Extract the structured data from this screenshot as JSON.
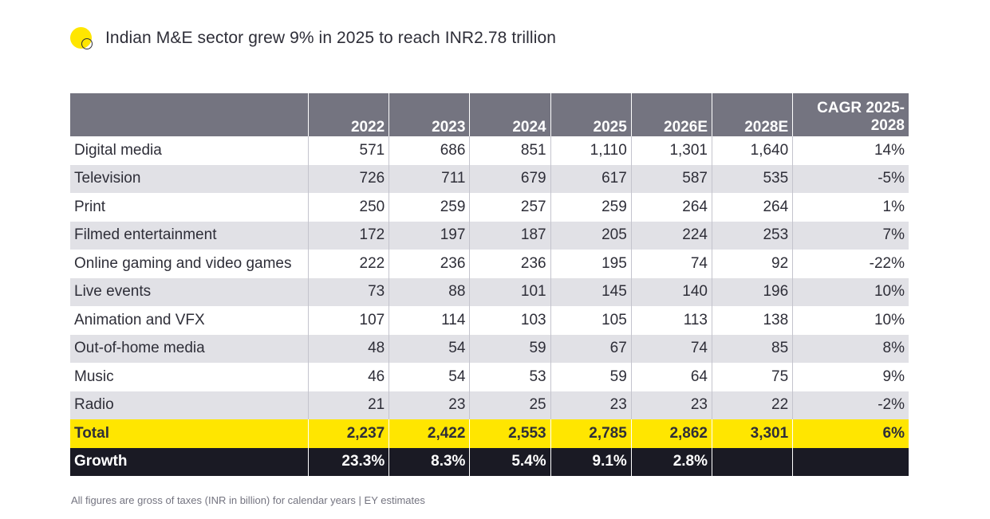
{
  "header": {
    "title": "Indian M&E sector grew 9% in 2025 to reach INR2.78 trillion"
  },
  "colors": {
    "accent_yellow": "#ffe600",
    "header_gray": "#747480",
    "dark": "#1a1a24",
    "stripe": "#e1e1e6"
  },
  "table": {
    "columns": [
      "2022",
      "2023",
      "2024",
      "2025",
      "2026E",
      "2028E",
      "CAGR 2025-\n2028"
    ],
    "rows": [
      {
        "label": "Digital media",
        "values": [
          "571",
          "686",
          "851",
          "1,110",
          "1,301",
          "1,640",
          "14%"
        ]
      },
      {
        "label": "Television",
        "values": [
          "726",
          "711",
          "679",
          "617",
          "587",
          "535",
          "-5%"
        ]
      },
      {
        "label": "Print",
        "values": [
          "250",
          "259",
          "257",
          "259",
          "264",
          "264",
          "1%"
        ]
      },
      {
        "label": "Filmed entertainment",
        "values": [
          "172",
          "197",
          "187",
          "205",
          "224",
          "253",
          "7%"
        ]
      },
      {
        "label": "Online gaming and video games",
        "values": [
          "222",
          "236",
          "236",
          "195",
          "74",
          "92",
          "-22%"
        ]
      },
      {
        "label": "Live events",
        "values": [
          "73",
          "88",
          "101",
          "145",
          "140",
          "196",
          "10%"
        ]
      },
      {
        "label": "Animation and VFX",
        "values": [
          "107",
          "114",
          "103",
          "105",
          "113",
          "138",
          "10%"
        ]
      },
      {
        "label": "Out-of-home media",
        "values": [
          "48",
          "54",
          "59",
          "67",
          "74",
          "85",
          "8%"
        ]
      },
      {
        "label": "Music",
        "values": [
          "46",
          "54",
          "53",
          "59",
          "64",
          "75",
          "9%"
        ]
      },
      {
        "label": "Radio",
        "values": [
          "21",
          "23",
          "25",
          "23",
          "23",
          "22",
          "-2%"
        ]
      }
    ],
    "total": {
      "label": "Total",
      "values": [
        "2,237",
        "2,422",
        "2,553",
        "2,785",
        "2,862",
        "3,301",
        "6%"
      ]
    },
    "growth": {
      "label": "Growth",
      "values": [
        "23.3%",
        "8.3%",
        "5.4%",
        "9.1%",
        "2.8%",
        "",
        ""
      ]
    }
  },
  "footnote": "All figures are gross of taxes (INR in billion) for calendar years | EY estimates"
}
